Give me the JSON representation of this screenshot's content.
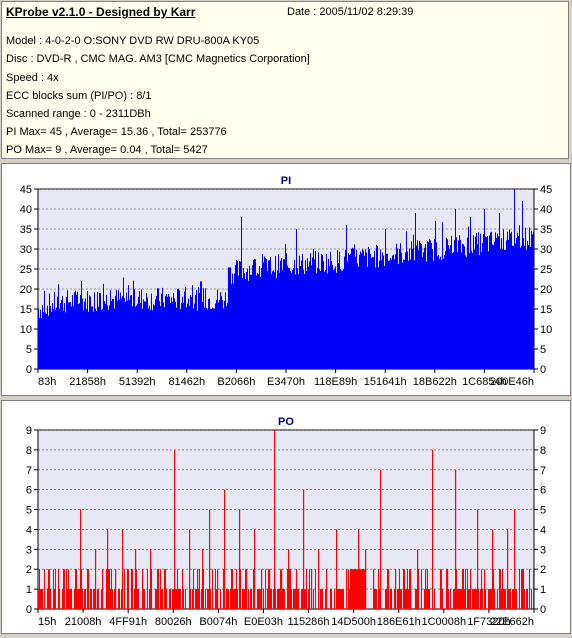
{
  "info": {
    "title": "KProbe v2.1.0 - Designed by Karr",
    "date": "Date : 2005/11/02 8:29:39",
    "lines": [
      "Model : 4-0-2-0 O:SONY    DVD RW DRU-800A  KY05",
      "Disc : DVD-R , CMC MAG. AM3 [CMC Magnetics Corporation]",
      "Speed : 4x",
      "ECC blocks sum (PI/PO) : 8/1",
      "Scanned range : 0 - 2311DBh",
      "PI Max= 45 , Average= 15.36 , Total= 253776",
      "PO Max= 9 , Average= 0.04 , Total= 5427"
    ]
  },
  "chart_data": [
    {
      "type": "bar",
      "title": "PI",
      "color": "#0000ff",
      "ylim": [
        0,
        45
      ],
      "yticks": [
        0,
        5,
        10,
        15,
        20,
        25,
        30,
        35,
        40,
        45
      ],
      "xlim_hex": [
        "0",
        "2311DB"
      ],
      "xtick_labels": [
        "83h",
        "21858h",
        "51392h",
        "81462h",
        "B2066h",
        "E3470h",
        "118E89h",
        "151641h",
        "18B622h",
        "1C6854h",
        "200E46h"
      ],
      "profile": [
        [
          0,
          15
        ],
        [
          20,
          16
        ],
        [
          60,
          17
        ],
        [
          200,
          17.5
        ],
        [
          380,
          17.5
        ],
        [
          385,
          24
        ],
        [
          420,
          25
        ],
        [
          500,
          26
        ],
        [
          600,
          27
        ],
        [
          700,
          28.5
        ],
        [
          800,
          30
        ],
        [
          900,
          31.5
        ],
        [
          1000,
          33
        ]
      ],
      "peaks": [
        [
          0.41,
          38
        ],
        [
          0.52,
          35
        ],
        [
          0.62,
          36
        ],
        [
          0.7,
          35
        ],
        [
          0.76,
          39
        ],
        [
          0.8,
          37
        ],
        [
          0.84,
          40
        ],
        [
          0.87,
          38
        ],
        [
          0.9,
          40
        ],
        [
          0.93,
          39
        ],
        [
          0.96,
          45
        ],
        [
          0.975,
          42
        ]
      ]
    },
    {
      "type": "bar",
      "title": "PO",
      "color": "#ff0000",
      "ylim": [
        0,
        9
      ],
      "yticks": [
        0,
        1,
        2,
        3,
        4,
        5,
        6,
        7,
        8,
        9
      ],
      "xlim_hex": [
        "0",
        "2311DB"
      ],
      "xtick_labels": [
        "15h",
        "21008h",
        "4FF91h",
        "80026h",
        "B0074h",
        "E0E03h",
        "115286h",
        "14D500h",
        "186E61h",
        "1C0008h",
        "1F7320h",
        "22E662h"
      ],
      "spikes": [
        [
          0.02,
          2
        ],
        [
          0.05,
          2
        ],
        [
          0.075,
          2
        ],
        [
          0.085,
          5
        ],
        [
          0.1,
          2
        ],
        [
          0.115,
          3
        ],
        [
          0.13,
          2
        ],
        [
          0.14,
          4
        ],
        [
          0.155,
          2
        ],
        [
          0.17,
          4
        ],
        [
          0.18,
          2
        ],
        [
          0.195,
          3
        ],
        [
          0.21,
          2
        ],
        [
          0.225,
          3
        ],
        [
          0.24,
          2
        ],
        [
          0.255,
          2
        ],
        [
          0.275,
          8
        ],
        [
          0.29,
          2
        ],
        [
          0.305,
          4
        ],
        [
          0.32,
          2
        ],
        [
          0.33,
          3
        ],
        [
          0.345,
          5
        ],
        [
          0.36,
          2
        ],
        [
          0.375,
          6
        ],
        [
          0.39,
          2
        ],
        [
          0.405,
          5
        ],
        [
          0.42,
          2
        ],
        [
          0.435,
          4
        ],
        [
          0.45,
          2
        ],
        [
          0.465,
          2
        ],
        [
          0.475,
          9
        ],
        [
          0.49,
          2
        ],
        [
          0.505,
          3
        ],
        [
          0.52,
          2
        ],
        [
          0.535,
          6
        ],
        [
          0.55,
          2
        ],
        [
          0.565,
          3
        ],
        [
          0.58,
          2
        ],
        [
          0.6,
          4
        ],
        [
          0.62,
          2
        ],
        [
          0.63,
          2
        ],
        [
          0.645,
          4
        ],
        [
          0.66,
          3
        ],
        [
          0.675,
          2
        ],
        [
          0.69,
          7
        ],
        [
          0.705,
          2
        ],
        [
          0.72,
          2
        ],
        [
          0.735,
          2
        ],
        [
          0.75,
          2
        ],
        [
          0.765,
          3
        ],
        [
          0.78,
          2
        ],
        [
          0.795,
          8
        ],
        [
          0.81,
          2
        ],
        [
          0.825,
          2
        ],
        [
          0.84,
          7
        ],
        [
          0.855,
          2
        ],
        [
          0.87,
          2
        ],
        [
          0.885,
          5
        ],
        [
          0.9,
          2
        ],
        [
          0.915,
          4
        ],
        [
          0.93,
          2
        ],
        [
          0.945,
          4
        ],
        [
          0.96,
          5
        ],
        [
          0.975,
          2
        ]
      ],
      "dense_block": [
        0.63,
        0.66,
        2
      ]
    }
  ]
}
